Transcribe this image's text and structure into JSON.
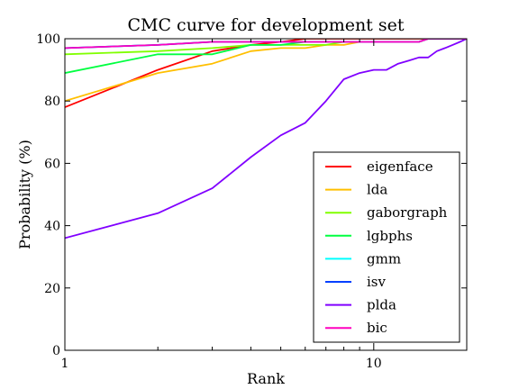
{
  "chart_data": {
    "type": "line",
    "title": "CMC curve for development set",
    "xlabel": "Rank",
    "ylabel": "Probability (%)",
    "xscale": "log",
    "xlim": [
      1,
      20
    ],
    "ylim": [
      0,
      100
    ],
    "grid": false,
    "legend_position": "bottom-right",
    "x_ticks": [
      {
        "value": 1,
        "label": "1"
      },
      {
        "value": 10,
        "label": "10"
      }
    ],
    "y_ticks": [
      {
        "value": 0,
        "label": "0"
      },
      {
        "value": 20,
        "label": "20"
      },
      {
        "value": 40,
        "label": "40"
      },
      {
        "value": 60,
        "label": "60"
      },
      {
        "value": 80,
        "label": "80"
      },
      {
        "value": 100,
        "label": "100"
      }
    ],
    "x": [
      1,
      2,
      3,
      4,
      5,
      6,
      7,
      8,
      9,
      10,
      11,
      12,
      13,
      14,
      15,
      16,
      17,
      18,
      19,
      20
    ],
    "series": [
      {
        "name": "eigenface",
        "color": "#ff0000",
        "values": [
          78,
          90,
          96,
          98,
          99,
          100,
          100,
          100,
          100,
          100,
          100,
          100,
          100,
          100,
          100,
          100,
          100,
          100,
          100,
          100
        ]
      },
      {
        "name": "lda",
        "color": "#ffbf00",
        "values": [
          80,
          89,
          92,
          96,
          97,
          97,
          98,
          98,
          99,
          99,
          99,
          99,
          99,
          99,
          100,
          100,
          100,
          100,
          100,
          100
        ]
      },
      {
        "name": "gaborgraph",
        "color": "#80ff00",
        "values": [
          95,
          96,
          97,
          98,
          98,
          98,
          98,
          99,
          99,
          99,
          99,
          99,
          99,
          99,
          100,
          100,
          100,
          100,
          100,
          100
        ]
      },
      {
        "name": "lgbphs",
        "color": "#00ff40",
        "values": [
          89,
          95,
          95,
          98,
          98,
          99,
          99,
          99,
          99,
          99,
          99,
          99,
          99,
          99,
          100,
          100,
          100,
          100,
          100,
          100
        ]
      },
      {
        "name": "gmm",
        "color": "#00ffff",
        "values": [
          97,
          98,
          99,
          99,
          99,
          99,
          99,
          99,
          99,
          99,
          99,
          99,
          99,
          99,
          100,
          100,
          100,
          100,
          100,
          100
        ]
      },
      {
        "name": "isv",
        "color": "#0040ff",
        "values": [
          97,
          98,
          99,
          99,
          99,
          99,
          99,
          99,
          99,
          99,
          99,
          99,
          99,
          99,
          100,
          100,
          100,
          100,
          100,
          100
        ]
      },
      {
        "name": "plda",
        "color": "#8000ff",
        "values": [
          36,
          44,
          52,
          62,
          69,
          73,
          80,
          87,
          89,
          90,
          90,
          92,
          93,
          94,
          94,
          96,
          97,
          98,
          99,
          100
        ]
      },
      {
        "name": "bic",
        "color": "#ff00bf",
        "values": [
          97,
          98,
          99,
          99,
          99,
          99,
          99,
          99,
          99,
          99,
          99,
          99,
          99,
          99,
          100,
          100,
          100,
          100,
          100,
          100
        ]
      }
    ]
  }
}
